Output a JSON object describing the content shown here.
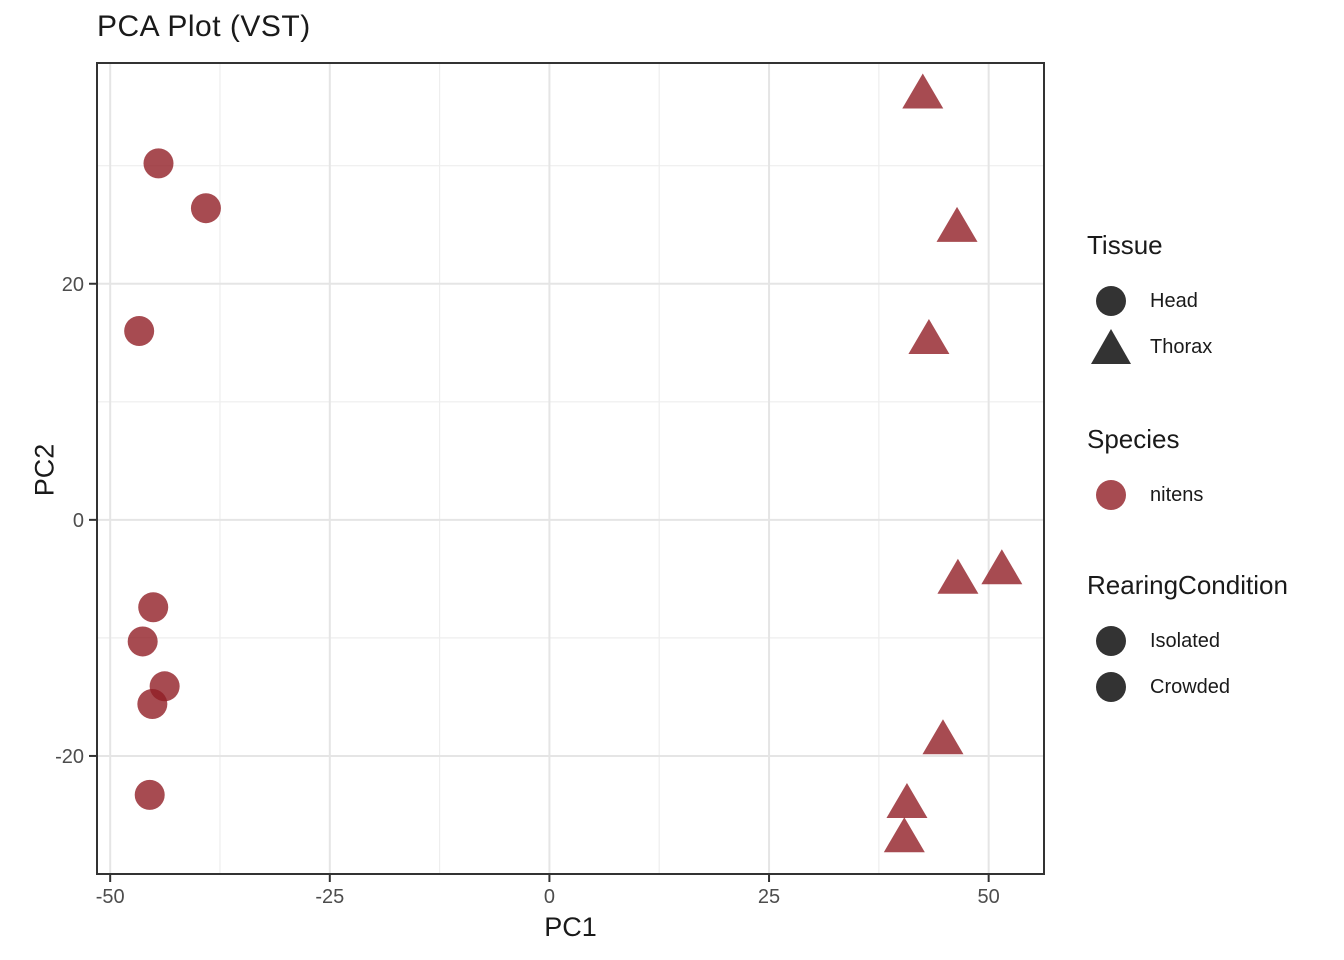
{
  "title": "PCA Plot (VST)",
  "chart_data": {
    "type": "scatter",
    "title": "PCA Plot (VST)",
    "xlabel": "PC1",
    "ylabel": "PC2",
    "xlim": [
      -51.5,
      56.3
    ],
    "ylim": [
      -30.0,
      38.7
    ],
    "x_major_ticks": [
      -50,
      -25,
      0,
      25,
      50
    ],
    "x_minor_ticks": [
      -37.5,
      -12.5,
      12.5,
      37.5
    ],
    "y_major_ticks": [
      -20,
      0,
      20
    ],
    "y_minor_ticks": [
      30,
      10,
      -10,
      -30
    ],
    "grid": true,
    "legend_position": "right",
    "point_color": "#911E26",
    "point_opacity": 0.8,
    "series": [
      {
        "name": "Head",
        "shape": "circle",
        "points": [
          [
            -44.5,
            30.2
          ],
          [
            -39.1,
            26.4
          ],
          [
            -46.7,
            16.0
          ],
          [
            -45.1,
            -7.4
          ],
          [
            -46.3,
            -10.3
          ],
          [
            -43.8,
            -14.1
          ],
          [
            -45.2,
            -15.6
          ],
          [
            -45.5,
            -23.3
          ]
        ]
      },
      {
        "name": "Thorax",
        "shape": "triangle",
        "points": [
          [
            42.5,
            36.2
          ],
          [
            46.4,
            24.9
          ],
          [
            43.2,
            15.4
          ],
          [
            46.5,
            -4.9
          ],
          [
            51.5,
            -4.1
          ],
          [
            44.8,
            -18.5
          ],
          [
            40.7,
            -23.9
          ],
          [
            40.4,
            -26.8
          ]
        ]
      }
    ]
  },
  "legend": {
    "groups": [
      {
        "title": "Tissue",
        "items": [
          {
            "label": "Head",
            "shape": "circle",
            "color": "#333333"
          },
          {
            "label": "Thorax",
            "shape": "triangle",
            "color": "#333333"
          }
        ]
      },
      {
        "title": "Species",
        "items": [
          {
            "label": "nitens",
            "shape": "circle",
            "color": "#A74B51"
          }
        ]
      },
      {
        "title": "RearingCondition",
        "items": [
          {
            "label": "Isolated",
            "shape": "circle",
            "color": "#333333"
          },
          {
            "label": "Crowded",
            "shape": "circle",
            "color": "#333333"
          }
        ]
      }
    ]
  },
  "colors": {
    "grid_major": "#E5E5E5",
    "grid_minor": "#EEEEEE",
    "panel_border": "#333333",
    "tick": "#333333",
    "tick_label": "#4d4d4d",
    "text": "#1a1a1a"
  }
}
